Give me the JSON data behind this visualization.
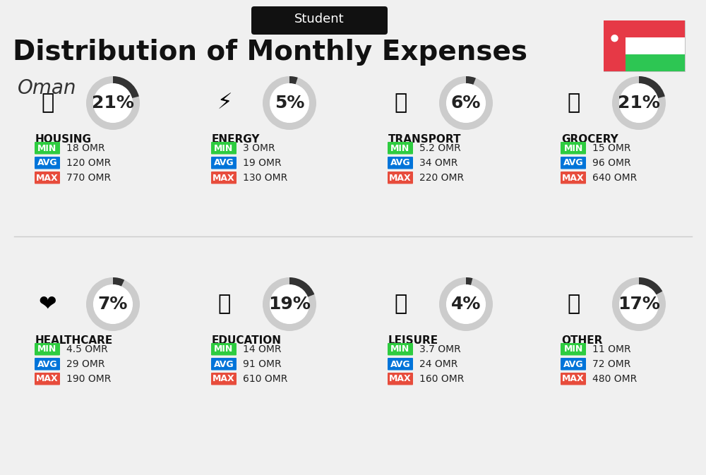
{
  "title": "Distribution of Monthly Expenses",
  "subtitle": "Student",
  "country": "Oman",
  "background_color": "#f0f0f0",
  "categories": [
    {
      "name": "HOUSING",
      "percent": 21,
      "min": "18 OMR",
      "avg": "120 OMR",
      "max": "770 OMR",
      "row": 0,
      "col": 0
    },
    {
      "name": "ENERGY",
      "percent": 5,
      "min": "3 OMR",
      "avg": "19 OMR",
      "max": "130 OMR",
      "row": 0,
      "col": 1
    },
    {
      "name": "TRANSPORT",
      "percent": 6,
      "min": "5.2 OMR",
      "avg": "34 OMR",
      "max": "220 OMR",
      "row": 0,
      "col": 2
    },
    {
      "name": "GROCERY",
      "percent": 21,
      "min": "15 OMR",
      "avg": "96 OMR",
      "max": "640 OMR",
      "row": 0,
      "col": 3
    },
    {
      "name": "HEALTHCARE",
      "percent": 7,
      "min": "4.5 OMR",
      "avg": "29 OMR",
      "max": "190 OMR",
      "row": 1,
      "col": 0
    },
    {
      "name": "EDUCATION",
      "percent": 19,
      "min": "14 OMR",
      "avg": "91 OMR",
      "max": "610 OMR",
      "row": 1,
      "col": 1
    },
    {
      "name": "LEISURE",
      "percent": 4,
      "min": "3.7 OMR",
      "avg": "24 OMR",
      "max": "160 OMR",
      "row": 1,
      "col": 2
    },
    {
      "name": "OTHER",
      "percent": 17,
      "min": "11 OMR",
      "avg": "72 OMR",
      "max": "480 OMR",
      "row": 1,
      "col": 3
    }
  ],
  "min_color": "#2ecc40",
  "avg_color": "#0074d9",
  "max_color": "#e74c3c",
  "label_color": "#ffffff",
  "arc_color": "#333333",
  "arc_bg_color": "#cccccc",
  "title_fontsize": 28,
  "subtitle_fontsize": 13,
  "country_fontsize": 20,
  "percent_fontsize": 18,
  "cat_fontsize": 11,
  "val_fontsize": 10
}
